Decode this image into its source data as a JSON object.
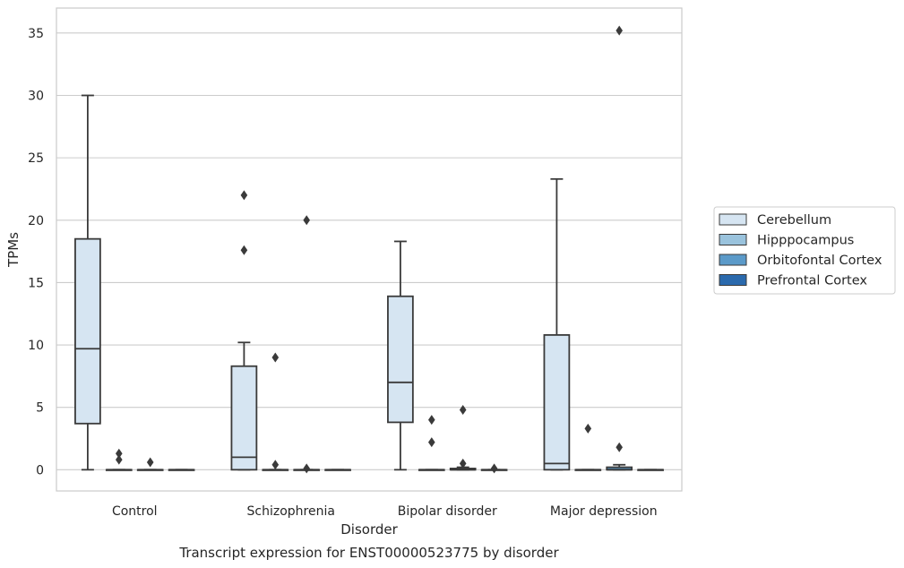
{
  "chart_data": {
    "type": "box",
    "title": "",
    "caption": "Transcript expression for ENST00000523775 by disorder",
    "xlabel": "Disorder",
    "ylabel": "TPMs",
    "ylim": [
      -1.7,
      37
    ],
    "yticks": [
      0,
      5,
      10,
      15,
      20,
      25,
      30,
      35
    ],
    "grid": "horizontal",
    "legend_position": "right",
    "categories": [
      "Control",
      "Schizophrenia",
      "Bipolar disorder",
      "Major depression"
    ],
    "series": [
      {
        "name": "Cerebellum",
        "color": "#d6e5f2",
        "boxes": [
          {
            "whisker_low": 0,
            "q1": 3.7,
            "median": 9.7,
            "q3": 18.5,
            "whisker_high": 30.0,
            "outliers": []
          },
          {
            "whisker_low": 0,
            "q1": 0,
            "median": 1.0,
            "q3": 8.3,
            "whisker_high": 10.2,
            "outliers": [
              22.0,
              17.6
            ]
          },
          {
            "whisker_low": 0,
            "q1": 3.8,
            "median": 7.0,
            "q3": 13.9,
            "whisker_high": 18.3,
            "outliers": []
          },
          {
            "whisker_low": 0,
            "q1": 0,
            "median": 0.5,
            "q3": 10.8,
            "whisker_high": 23.3,
            "outliers": []
          }
        ]
      },
      {
        "name": "Hipppocampus",
        "color": "#9ac3dd",
        "boxes": [
          {
            "whisker_low": 0,
            "q1": 0,
            "median": 0,
            "q3": 0,
            "whisker_high": 0,
            "outliers": [
              1.3,
              0.8
            ]
          },
          {
            "whisker_low": 0,
            "q1": 0,
            "median": 0,
            "q3": 0,
            "whisker_high": 0,
            "outliers": [
              9.0,
              0.4
            ]
          },
          {
            "whisker_low": 0,
            "q1": 0,
            "median": 0,
            "q3": 0,
            "whisker_high": 0,
            "outliers": [
              4.0,
              2.2
            ]
          },
          {
            "whisker_low": 0,
            "q1": 0,
            "median": 0,
            "q3": 0,
            "whisker_high": 0,
            "outliers": [
              3.3
            ]
          }
        ]
      },
      {
        "name": "Orbitofontal Cortex",
        "color": "#5b9ac9",
        "boxes": [
          {
            "whisker_low": 0,
            "q1": 0,
            "median": 0,
            "q3": 0,
            "whisker_high": 0,
            "outliers": [
              0.6
            ]
          },
          {
            "whisker_low": 0,
            "q1": 0,
            "median": 0,
            "q3": 0,
            "whisker_high": 0,
            "outliers": [
              20.0,
              0.1
            ]
          },
          {
            "whisker_low": 0,
            "q1": 0,
            "median": 0,
            "q3": 0.1,
            "whisker_high": 0.2,
            "outliers": [
              4.8,
              0.5
            ]
          },
          {
            "whisker_low": 0,
            "q1": 0,
            "median": 0,
            "q3": 0.2,
            "whisker_high": 0.4,
            "outliers": [
              35.2,
              1.8
            ]
          }
        ]
      },
      {
        "name": "Prefrontal Cortex",
        "color": "#2b6aad",
        "boxes": [
          {
            "whisker_low": 0,
            "q1": 0,
            "median": 0,
            "q3": 0,
            "whisker_high": 0,
            "outliers": []
          },
          {
            "whisker_low": 0,
            "q1": 0,
            "median": 0,
            "q3": 0,
            "whisker_high": 0,
            "outliers": []
          },
          {
            "whisker_low": 0,
            "q1": 0,
            "median": 0,
            "q3": 0,
            "whisker_high": 0,
            "outliers": [
              0.1
            ]
          },
          {
            "whisker_low": 0,
            "q1": 0,
            "median": 0,
            "q3": 0,
            "whisker_high": 0,
            "outliers": []
          }
        ]
      }
    ]
  }
}
